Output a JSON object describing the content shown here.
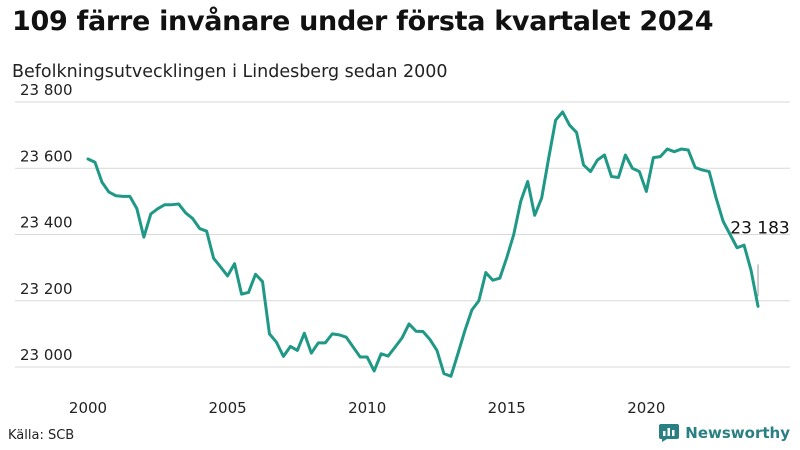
{
  "title": "109 färre invånare under första kvartalet 2024",
  "subtitle": "Befolkningsutvecklingen i Lindesberg sedan 2000",
  "source": "Källa: SCB",
  "brand": {
    "name": "Newsworthy",
    "icon": "bar-chart-logo-icon"
  },
  "colors": {
    "line": "#1f9886",
    "grid": "#d9d9d9",
    "brand": "#2a7f83"
  },
  "chart_data": {
    "type": "line",
    "title": "109 färre invånare under första kvartalet 2024",
    "subtitle": "Befolkningsutvecklingen i Lindesberg sedan 2000",
    "xlabel": "",
    "ylabel": "",
    "xlim": [
      2000,
      2024.25
    ],
    "ylim": [
      22950,
      23820
    ],
    "x_ticks": [
      2000,
      2005,
      2010,
      2015,
      2020
    ],
    "y_ticks": [
      {
        "value": 23000,
        "label": "23 000"
      },
      {
        "value": 23200,
        "label": "23 200"
      },
      {
        "value": 23400,
        "label": "23 400"
      },
      {
        "value": 23600,
        "label": "23 600"
      },
      {
        "value": 23800,
        "label": "23 800"
      }
    ],
    "grid": true,
    "annotation": {
      "x": 2024.0,
      "y": 23183,
      "label": "23 183"
    },
    "series": [
      {
        "x": [
          2000.0,
          2000.25,
          2000.5,
          2000.75,
          2001.0,
          2001.25,
          2001.5,
          2001.75,
          2002.0,
          2002.25,
          2002.5,
          2002.75,
          2003.0,
          2003.25,
          2003.5,
          2003.75,
          2004.0,
          2004.25,
          2004.5,
          2004.75,
          2005.0,
          2005.25,
          2005.5,
          2005.75,
          2006.0,
          2006.25,
          2006.5,
          2006.75,
          2007.0,
          2007.25,
          2007.5,
          2007.75,
          2008.0,
          2008.25,
          2008.5,
          2008.75,
          2009.0,
          2009.25,
          2009.5,
          2009.75,
          2010.0,
          2010.25,
          2010.5,
          2010.75,
          2011.0,
          2011.25,
          2011.5,
          2011.75,
          2012.0,
          2012.25,
          2012.5,
          2012.75,
          2013.0,
          2013.25,
          2013.5,
          2013.75,
          2014.0,
          2014.25,
          2014.5,
          2014.75,
          2015.0,
          2015.25,
          2015.5,
          2015.75,
          2016.0,
          2016.25,
          2016.5,
          2016.75,
          2017.0,
          2017.25,
          2017.5,
          2017.75,
          2018.0,
          2018.25,
          2018.5,
          2018.75,
          2019.0,
          2019.25,
          2019.5,
          2019.75,
          2020.0,
          2020.25,
          2020.5,
          2020.75,
          2021.0,
          2021.25,
          2021.5,
          2021.75,
          2022.0,
          2022.25,
          2022.5,
          2022.75,
          2023.0,
          2023.25,
          2023.5,
          2023.75,
          2024.0
        ],
        "values": [
          23628,
          23618,
          23558,
          23528,
          23517,
          23515,
          23515,
          23478,
          23392,
          23462,
          23478,
          23490,
          23490,
          23492,
          23465,
          23448,
          23418,
          23410,
          23328,
          23302,
          23275,
          23312,
          23220,
          23225,
          23280,
          23258,
          23100,
          23075,
          23032,
          23062,
          23050,
          23102,
          23042,
          23073,
          23073,
          23100,
          23097,
          23090,
          23060,
          23030,
          23030,
          22988,
          23040,
          23033,
          23060,
          23088,
          23130,
          23108,
          23107,
          23083,
          23050,
          22980,
          22972,
          23040,
          23110,
          23172,
          23200,
          23285,
          23262,
          23268,
          23330,
          23400,
          23500,
          23560,
          23458,
          23510,
          23630,
          23745,
          23770,
          23730,
          23708,
          23610,
          23590,
          23625,
          23640,
          23575,
          23572,
          23640,
          23600,
          23590,
          23530,
          23632,
          23635,
          23658,
          23650,
          23658,
          23655,
          23602,
          23595,
          23590,
          23510,
          23440,
          23400,
          23360,
          23368,
          23292,
          23183
        ]
      }
    ]
  }
}
